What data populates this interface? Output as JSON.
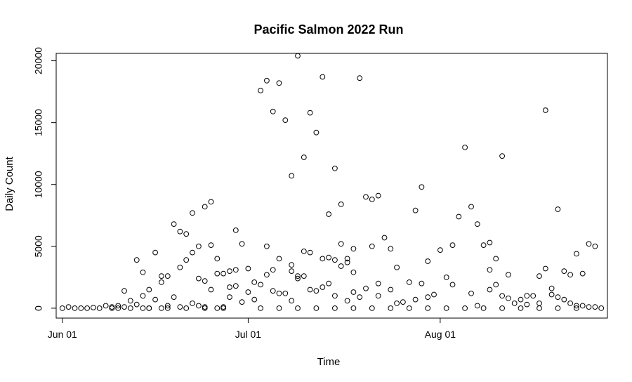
{
  "chart_data": {
    "type": "scatter",
    "title": "Pacific Salmon 2022 Run",
    "xlabel": "Time",
    "ylabel": "Daily Count",
    "x_axis": {
      "type": "date",
      "range": [
        "2022-05-31",
        "2022-08-28"
      ],
      "ticks": [
        {
          "value": "2022-06-01",
          "label": "Jun 01"
        },
        {
          "value": "2022-07-01",
          "label": "Jul 01"
        },
        {
          "value": "2022-08-01",
          "label": "Aug 01"
        }
      ]
    },
    "y_axis": {
      "range": [
        -800,
        20600
      ],
      "ticks": [
        {
          "value": 0,
          "label": "0"
        },
        {
          "value": 5000,
          "label": "5000"
        },
        {
          "value": 10000,
          "label": "10000"
        },
        {
          "value": 15000,
          "label": "15000"
        },
        {
          "value": 20000,
          "label": "20000"
        }
      ]
    },
    "grid": false,
    "legend": "none",
    "series": [
      {
        "points": [
          [
            "2022-06-01",
            0
          ],
          [
            "2022-06-02",
            100
          ],
          [
            "2022-06-03",
            0
          ],
          [
            "2022-06-04",
            0
          ],
          [
            "2022-06-05",
            0
          ],
          [
            "2022-06-06",
            50
          ],
          [
            "2022-06-07",
            0
          ],
          [
            "2022-06-08",
            200
          ],
          [
            "2022-06-09",
            100
          ],
          [
            "2022-06-10",
            200
          ],
          [
            "2022-06-10",
            0
          ],
          [
            "2022-06-11",
            1400
          ],
          [
            "2022-06-11",
            100
          ],
          [
            "2022-06-12",
            600
          ],
          [
            "2022-06-12",
            0
          ],
          [
            "2022-06-13",
            3900
          ],
          [
            "2022-06-13",
            300
          ],
          [
            "2022-06-14",
            2900
          ],
          [
            "2022-06-14",
            1000
          ],
          [
            "2022-06-14",
            0
          ],
          [
            "2022-06-15",
            1500
          ],
          [
            "2022-06-15",
            0
          ],
          [
            "2022-06-16",
            4500
          ],
          [
            "2022-06-16",
            700
          ],
          [
            "2022-06-17",
            2600
          ],
          [
            "2022-06-17",
            2100
          ],
          [
            "2022-06-17",
            0
          ],
          [
            "2022-06-18",
            2600
          ],
          [
            "2022-06-18",
            200
          ],
          [
            "2022-06-19",
            6800
          ],
          [
            "2022-06-19",
            900
          ],
          [
            "2022-06-20",
            6200
          ],
          [
            "2022-06-20",
            3300
          ],
          [
            "2022-06-20",
            100
          ],
          [
            "2022-06-21",
            6000
          ],
          [
            "2022-06-21",
            3900
          ],
          [
            "2022-06-22",
            7700
          ],
          [
            "2022-06-22",
            4500
          ],
          [
            "2022-06-22",
            400
          ],
          [
            "2022-06-23",
            5000
          ],
          [
            "2022-06-23",
            2400
          ],
          [
            "2022-06-23",
            200
          ],
          [
            "2022-06-24",
            8200
          ],
          [
            "2022-06-24",
            2200
          ],
          [
            "2022-06-24",
            100
          ],
          [
            "2022-06-25",
            8600
          ],
          [
            "2022-06-25",
            5100
          ],
          [
            "2022-06-25",
            1500
          ],
          [
            "2022-06-26",
            4000
          ],
          [
            "2022-06-26",
            2800
          ],
          [
            "2022-06-26",
            0
          ],
          [
            "2022-06-27",
            2800
          ],
          [
            "2022-06-27",
            100
          ],
          [
            "2022-06-28",
            3000
          ],
          [
            "2022-06-28",
            1700
          ],
          [
            "2022-06-28",
            900
          ],
          [
            "2022-06-29",
            6300
          ],
          [
            "2022-06-29",
            3100
          ],
          [
            "2022-06-29",
            1800
          ],
          [
            "2022-06-30",
            5200
          ],
          [
            "2022-06-30",
            500
          ],
          [
            "2022-07-01",
            3200
          ],
          [
            "2022-07-01",
            1300
          ],
          [
            "2022-07-02",
            2100
          ],
          [
            "2022-07-02",
            700
          ],
          [
            "2022-07-03",
            17600
          ],
          [
            "2022-07-03",
            1900
          ],
          [
            "2022-07-04",
            18400
          ],
          [
            "2022-07-04",
            5000
          ],
          [
            "2022-07-04",
            2700
          ],
          [
            "2022-07-05",
            15900
          ],
          [
            "2022-07-05",
            3100
          ],
          [
            "2022-07-05",
            1400
          ],
          [
            "2022-07-06",
            18200
          ],
          [
            "2022-07-06",
            4000
          ],
          [
            "2022-07-06",
            1200
          ],
          [
            "2022-07-07",
            15200
          ],
          [
            "2022-07-07",
            1200
          ],
          [
            "2022-07-08",
            10700
          ],
          [
            "2022-07-08",
            3500
          ],
          [
            "2022-07-08",
            3000
          ],
          [
            "2022-07-08",
            600
          ],
          [
            "2022-07-09",
            20400
          ],
          [
            "2022-07-09",
            2600
          ],
          [
            "2022-07-09",
            2400
          ],
          [
            "2022-07-10",
            12200
          ],
          [
            "2022-07-10",
            4600
          ],
          [
            "2022-07-10",
            2600
          ],
          [
            "2022-07-11",
            15800
          ],
          [
            "2022-07-11",
            4500
          ],
          [
            "2022-07-11",
            1500
          ],
          [
            "2022-07-12",
            14200
          ],
          [
            "2022-07-12",
            1400
          ],
          [
            "2022-07-13",
            18700
          ],
          [
            "2022-07-13",
            4000
          ],
          [
            "2022-07-13",
            1700
          ],
          [
            "2022-07-14",
            7600
          ],
          [
            "2022-07-14",
            4100
          ],
          [
            "2022-07-14",
            2000
          ],
          [
            "2022-07-15",
            11300
          ],
          [
            "2022-07-15",
            3900
          ],
          [
            "2022-07-15",
            1000
          ],
          [
            "2022-07-16",
            8400
          ],
          [
            "2022-07-16",
            5200
          ],
          [
            "2022-07-16",
            3400
          ],
          [
            "2022-07-17",
            4000
          ],
          [
            "2022-07-17",
            3700
          ],
          [
            "2022-07-17",
            600
          ],
          [
            "2022-07-18",
            4800
          ],
          [
            "2022-07-18",
            2900
          ],
          [
            "2022-07-18",
            1300
          ],
          [
            "2022-07-19",
            18600
          ],
          [
            "2022-07-19",
            900
          ],
          [
            "2022-07-20",
            9000
          ],
          [
            "2022-07-20",
            1600
          ],
          [
            "2022-07-21",
            8800
          ],
          [
            "2022-07-21",
            5000
          ],
          [
            "2022-07-22",
            9100
          ],
          [
            "2022-07-22",
            2000
          ],
          [
            "2022-07-22",
            1000
          ],
          [
            "2022-07-23",
            5700
          ],
          [
            "2022-07-24",
            4800
          ],
          [
            "2022-07-24",
            1500
          ],
          [
            "2022-07-25",
            3300
          ],
          [
            "2022-07-25",
            400
          ],
          [
            "2022-07-26",
            500
          ],
          [
            "2022-07-27",
            2100
          ],
          [
            "2022-07-28",
            7900
          ],
          [
            "2022-07-28",
            700
          ],
          [
            "2022-07-29",
            9800
          ],
          [
            "2022-07-29",
            2000
          ],
          [
            "2022-07-30",
            3800
          ],
          [
            "2022-07-30",
            900
          ],
          [
            "2022-07-31",
            1100
          ],
          [
            "2022-08-01",
            4700
          ],
          [
            "2022-08-02",
            2500
          ],
          [
            "2022-08-03",
            5100
          ],
          [
            "2022-08-03",
            1900
          ],
          [
            "2022-08-04",
            7400
          ],
          [
            "2022-08-05",
            13000
          ],
          [
            "2022-08-06",
            8200
          ],
          [
            "2022-08-06",
            1200
          ],
          [
            "2022-08-07",
            6800
          ],
          [
            "2022-08-07",
            200
          ],
          [
            "2022-08-08",
            5100
          ],
          [
            "2022-08-09",
            5300
          ],
          [
            "2022-08-09",
            3100
          ],
          [
            "2022-08-09",
            1500
          ],
          [
            "2022-08-10",
            4000
          ],
          [
            "2022-08-10",
            1900
          ],
          [
            "2022-08-11",
            12300
          ],
          [
            "2022-08-11",
            1000
          ],
          [
            "2022-08-12",
            2700
          ],
          [
            "2022-08-12",
            800
          ],
          [
            "2022-08-13",
            400
          ],
          [
            "2022-08-14",
            700
          ],
          [
            "2022-08-15",
            1000
          ],
          [
            "2022-08-15",
            300
          ],
          [
            "2022-08-16",
            1000
          ],
          [
            "2022-08-17",
            2600
          ],
          [
            "2022-08-17",
            400
          ],
          [
            "2022-08-18",
            16000
          ],
          [
            "2022-08-18",
            3200
          ],
          [
            "2022-08-19",
            1600
          ],
          [
            "2022-08-19",
            1100
          ],
          [
            "2022-08-20",
            8000
          ],
          [
            "2022-08-20",
            900
          ],
          [
            "2022-08-21",
            3000
          ],
          [
            "2022-08-21",
            700
          ],
          [
            "2022-08-22",
            2700
          ],
          [
            "2022-08-22",
            400
          ],
          [
            "2022-08-23",
            4400
          ],
          [
            "2022-08-23",
            200
          ],
          [
            "2022-08-24",
            2800
          ],
          [
            "2022-08-24",
            200
          ],
          [
            "2022-08-25",
            5200
          ],
          [
            "2022-08-25",
            100
          ],
          [
            "2022-08-26",
            5000
          ],
          [
            "2022-08-26",
            100
          ],
          [
            "2022-08-27",
            0
          ],
          [
            "2022-06-09",
            0
          ],
          [
            "2022-06-15",
            0
          ],
          [
            "2022-06-18",
            0
          ],
          [
            "2022-06-21",
            0
          ],
          [
            "2022-06-24",
            0
          ],
          [
            "2022-06-27",
            0
          ],
          [
            "2022-07-03",
            0
          ],
          [
            "2022-07-06",
            0
          ],
          [
            "2022-07-09",
            0
          ],
          [
            "2022-07-12",
            0
          ],
          [
            "2022-07-15",
            0
          ],
          [
            "2022-07-18",
            0
          ],
          [
            "2022-07-21",
            0
          ],
          [
            "2022-07-24",
            0
          ],
          [
            "2022-07-27",
            0
          ],
          [
            "2022-07-30",
            0
          ],
          [
            "2022-08-02",
            0
          ],
          [
            "2022-08-05",
            0
          ],
          [
            "2022-08-08",
            0
          ],
          [
            "2022-08-11",
            0
          ],
          [
            "2022-08-14",
            0
          ],
          [
            "2022-08-17",
            0
          ],
          [
            "2022-08-20",
            0
          ],
          [
            "2022-08-23",
            0
          ]
        ]
      }
    ]
  }
}
